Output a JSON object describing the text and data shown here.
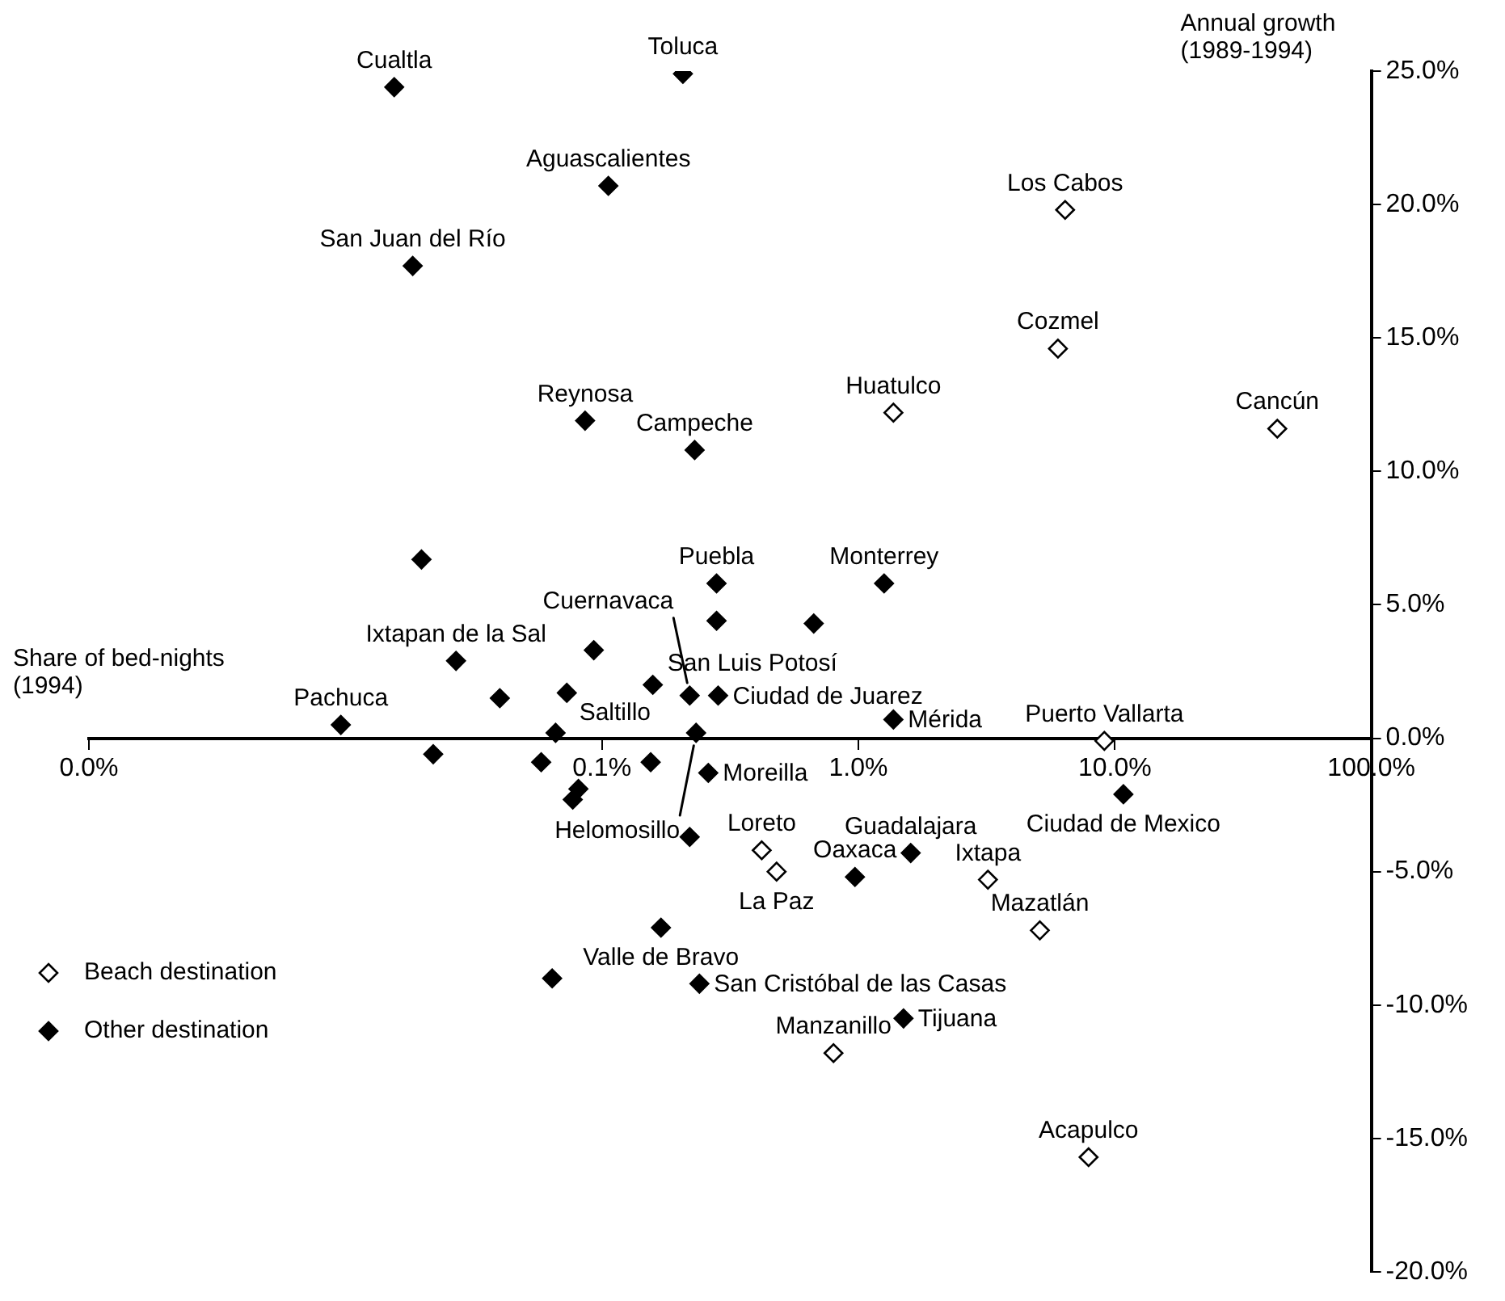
{
  "chart_data": {
    "type": "scatter",
    "xlabel": "Share of bed-nights (1994)",
    "ylabel": "Annual growth (1989-1994)",
    "log": "x",
    "grid": false,
    "legend": "bottom left",
    "marker": "diamond",
    "xlim": [
      0.001,
      100
    ],
    "ylim": [
      -20,
      25
    ],
    "xticks": [
      {
        "value": 0.001,
        "label": "0.0%"
      },
      {
        "value": 0.1,
        "label": "0.1%"
      },
      {
        "value": 1,
        "label": "1.0%"
      },
      {
        "value": 10,
        "label": "10.0%"
      },
      {
        "value": 100,
        "label": "100.0%"
      }
    ],
    "yticks": [
      {
        "value": -20,
        "label": "-20.0%"
      },
      {
        "value": -15,
        "label": "-15.0%"
      },
      {
        "value": -10,
        "label": "-10.0%"
      },
      {
        "value": -5,
        "label": "-5.0%"
      },
      {
        "value": 0,
        "label": "0.0%"
      },
      {
        "value": 5,
        "label": "5.0%"
      },
      {
        "value": 10,
        "label": "10.0%"
      },
      {
        "value": 15,
        "label": "15.0%"
      },
      {
        "value": 20,
        "label": "20.0%"
      },
      {
        "value": 25,
        "label": "25.0%"
      }
    ],
    "series": [
      {
        "name": "Beach destination",
        "color": "#ffffff",
        "x": [
          6.4,
          6.0,
          1.37,
          43,
          9.1,
          0.42,
          0.48,
          3.2,
          5.1,
          0.8,
          7.9
        ],
        "values": [
          19.8,
          14.6,
          12.2,
          11.6,
          -0.1,
          -4.2,
          -5.0,
          -5.3,
          -7.2,
          -11.8,
          -15.7
        ]
      },
      {
        "name": "Other destination",
        "color": "#000000",
        "x": [
          0.0155,
          0.207,
          0.106,
          0.0183,
          0.086,
          0.23,
          0.0198,
          0.28,
          0.28,
          1.26,
          0.67,
          0.027,
          0.093,
          0.04,
          0.073,
          0.158,
          0.22,
          0.284,
          0.0096,
          0.066,
          0.233,
          1.37,
          0.022,
          0.058,
          0.155,
          0.077,
          0.081,
          0.26,
          10.8,
          0.22,
          1.6,
          0.97,
          0.17,
          0.064,
          0.24,
          1.5
        ],
        "values": [
          24.4,
          24.9,
          20.7,
          17.7,
          11.9,
          10.8,
          6.7,
          5.8,
          4.4,
          5.8,
          4.3,
          2.9,
          3.3,
          1.5,
          1.7,
          2.0,
          1.6,
          1.6,
          0.5,
          0.2,
          0.2,
          0.7,
          -0.6,
          -0.9,
          -0.9,
          -2.3,
          -1.9,
          -1.3,
          -2.1,
          -3.7,
          -4.3,
          -5.2,
          -7.1,
          -9.0,
          -9.2,
          -10.5
        ]
      }
    ],
    "annotations": [
      {
        "text": "Los Cabos",
        "x": 6.4,
        "y": 19.8
      },
      {
        "text": "Cozmel",
        "x": 6.0,
        "y": 14.6
      },
      {
        "text": "Huatulco",
        "x": 1.37,
        "y": 12.2
      },
      {
        "text": "Cancún",
        "x": 43,
        "y": 11.6
      },
      {
        "text": "Puerto Vallarta",
        "x": 9.1,
        "y": -0.1
      },
      {
        "text": "Loreto",
        "x": 0.42,
        "y": -4.2
      },
      {
        "text": "La Paz",
        "x": 0.48,
        "y": -5.0
      },
      {
        "text": "Ixtapa",
        "x": 3.2,
        "y": -5.3
      },
      {
        "text": "Mazatlán",
        "x": 5.1,
        "y": -7.2
      },
      {
        "text": "Manzanillo",
        "x": 0.8,
        "y": -11.8
      },
      {
        "text": "Acapulco",
        "x": 7.9,
        "y": -15.7
      },
      {
        "text": "Cualtla",
        "x": 0.0155,
        "y": 24.4
      },
      {
        "text": "Toluca",
        "x": 0.207,
        "y": 24.9
      },
      {
        "text": "Aguascalientes",
        "x": 0.106,
        "y": 20.7
      },
      {
        "text": "San Juan del Río",
        "x": 0.0183,
        "y": 17.7
      },
      {
        "text": "Reynosa",
        "x": 0.086,
        "y": 11.9
      },
      {
        "text": "Campeche",
        "x": 0.23,
        "y": 10.8
      },
      {
        "text": "Puebla",
        "x": 0.28,
        "y": 5.8
      },
      {
        "text": "Monterrey",
        "x": 1.26,
        "y": 5.8
      },
      {
        "text": "Ixtapan de la Sal",
        "x": 0.027,
        "y": 2.9
      },
      {
        "text": "San Luis Potosí",
        "x": 0.158,
        "y": 2.0
      },
      {
        "text": "Cuernavaca",
        "x": 0.22,
        "y": 1.6
      },
      {
        "text": "Ciudad de Juarez",
        "x": 0.284,
        "y": 1.6
      },
      {
        "text": "Pachuca",
        "x": 0.0096,
        "y": 0.5
      },
      {
        "text": "Helomosillo",
        "x": 0.233,
        "y": 0.2
      },
      {
        "text": "Mérida",
        "x": 1.37,
        "y": 0.7
      },
      {
        "text": "Saltillo",
        "x": 0.155,
        "y": -0.9
      },
      {
        "text": "Moreilla",
        "x": 0.26,
        "y": -1.3
      },
      {
        "text": "Ciudad de Mexico",
        "x": 10.8,
        "y": -2.1
      },
      {
        "text": "Guadalajara",
        "x": 1.6,
        "y": -4.3
      },
      {
        "text": "Oaxaca",
        "x": 0.97,
        "y": -5.2
      },
      {
        "text": "Valle de Bravo",
        "x": 0.17,
        "y": -7.1
      },
      {
        "text": "San Cristóbal de las Casas",
        "x": 0.24,
        "y": -9.2
      },
      {
        "text": "Tijuana",
        "x": 1.5,
        "y": -10.5
      }
    ]
  }
}
